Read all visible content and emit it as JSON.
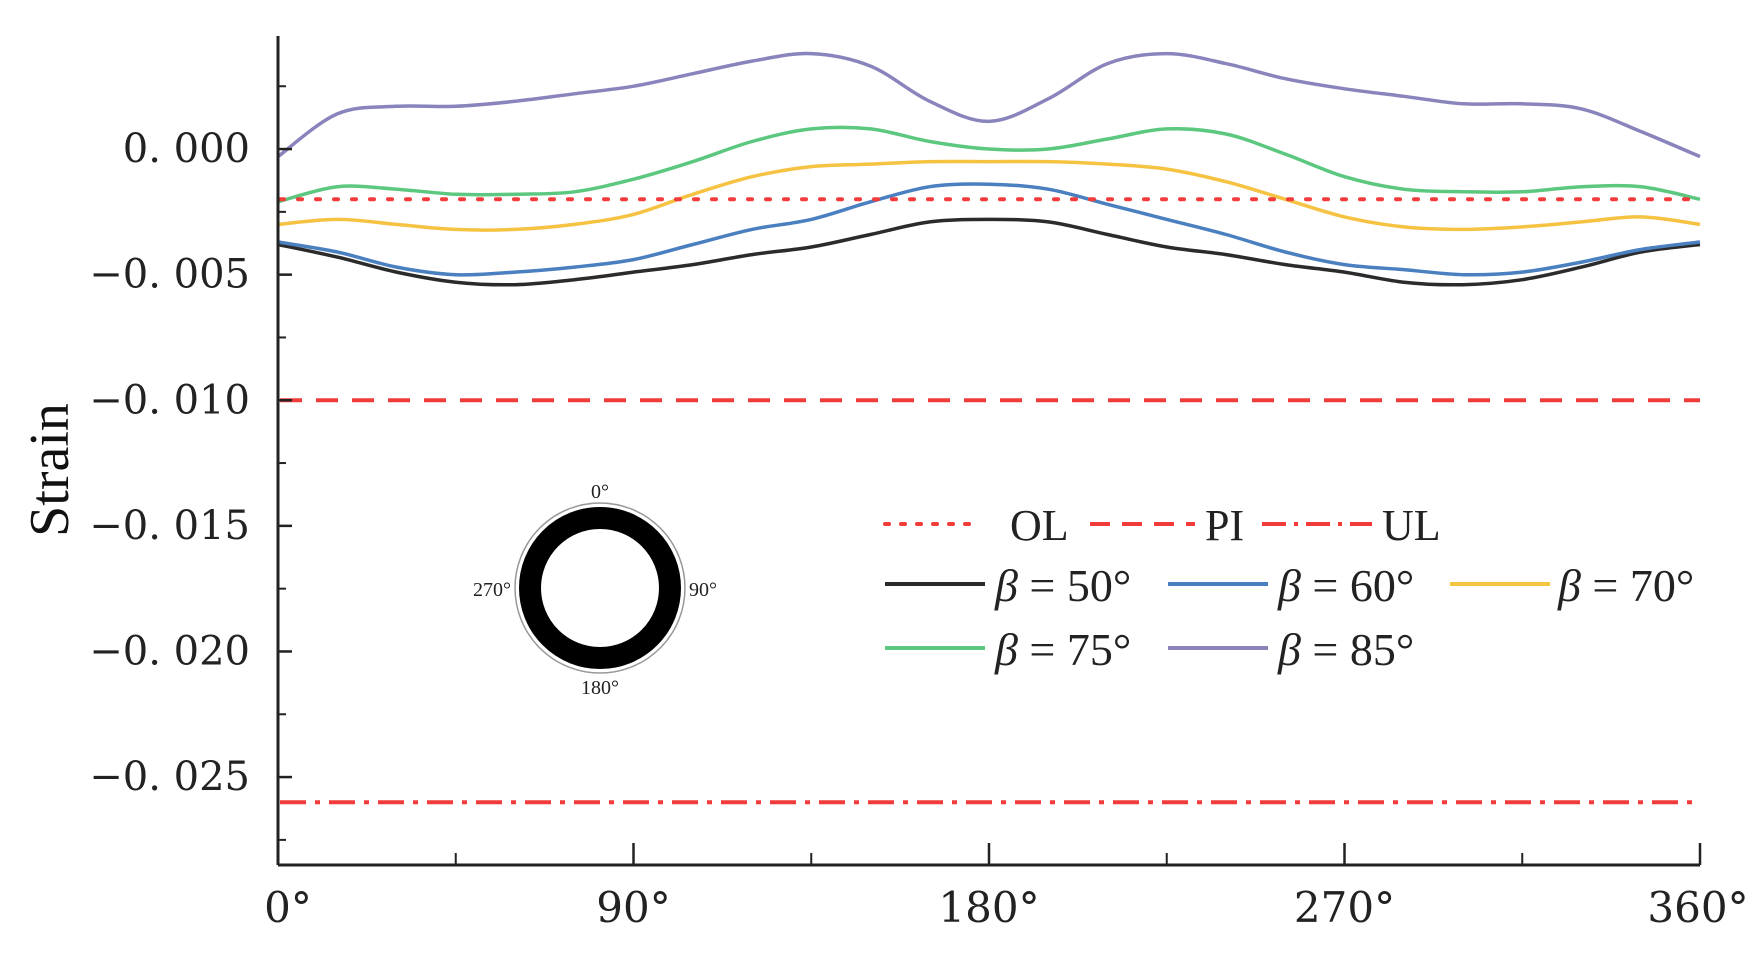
{
  "chart_data": {
    "type": "line",
    "ylabel": "Strain",
    "xlabel": "",
    "xlim": [
      0,
      360
    ],
    "ylim": [
      -0.0285,
      0.0045
    ],
    "x_ticks": [
      0,
      90,
      180,
      270,
      360
    ],
    "x_tick_labels": [
      "0°",
      "90°",
      "180°",
      "270°",
      "360°"
    ],
    "y_ticks": [
      0.0,
      -0.005,
      -0.01,
      -0.015,
      -0.02,
      -0.025
    ],
    "y_tick_labels": [
      "0. 000",
      "−0. 005",
      "−0. 010",
      "−0. 015",
      "−0. 020",
      "−0. 025"
    ],
    "reference_lines": [
      {
        "name": "OL",
        "value": -0.002,
        "style": "dotted",
        "color": "#f23b3b"
      },
      {
        "name": "PI",
        "value": -0.01,
        "style": "dashed",
        "color": "#f23b3b"
      },
      {
        "name": "UL",
        "value": -0.026,
        "style": "dashdot",
        "color": "#f23b3b"
      }
    ],
    "series": [
      {
        "name": "β = 50°",
        "label_prefix": "β",
        "label_suffix": " = 50°",
        "color": "#2b2b2b",
        "x": [
          0,
          15,
          30,
          45,
          60,
          75,
          90,
          105,
          120,
          135,
          150,
          165,
          180,
          195,
          210,
          225,
          240,
          255,
          270,
          285,
          300,
          315,
          330,
          345,
          360
        ],
        "y": [
          -0.0038,
          -0.0043,
          -0.0049,
          -0.0053,
          -0.0054,
          -0.0052,
          -0.0049,
          -0.0046,
          -0.0042,
          -0.0039,
          -0.0034,
          -0.0029,
          -0.0028,
          -0.0029,
          -0.0034,
          -0.0039,
          -0.0042,
          -0.0046,
          -0.0049,
          -0.0053,
          -0.0054,
          -0.0052,
          -0.0047,
          -0.0041,
          -0.0038
        ]
      },
      {
        "name": "β = 60°",
        "label_prefix": "β",
        "label_suffix": " = 60°",
        "color": "#4a7fc0",
        "x": [
          0,
          15,
          30,
          45,
          60,
          75,
          90,
          105,
          120,
          135,
          150,
          165,
          180,
          195,
          210,
          225,
          240,
          255,
          270,
          285,
          300,
          315,
          330,
          345,
          360
        ],
        "y": [
          -0.0037,
          -0.0041,
          -0.0047,
          -0.005,
          -0.0049,
          -0.0047,
          -0.0044,
          -0.0038,
          -0.0032,
          -0.0028,
          -0.0021,
          -0.0015,
          -0.0014,
          -0.0016,
          -0.0022,
          -0.0028,
          -0.0034,
          -0.0041,
          -0.0046,
          -0.0048,
          -0.005,
          -0.0049,
          -0.0045,
          -0.004,
          -0.0037
        ]
      },
      {
        "name": "β = 70°",
        "label_prefix": "β",
        "label_suffix": " = 70°",
        "color": "#f5c242",
        "x": [
          0,
          15,
          30,
          45,
          60,
          75,
          90,
          105,
          120,
          135,
          150,
          165,
          180,
          195,
          210,
          225,
          240,
          255,
          270,
          285,
          300,
          315,
          330,
          345,
          360
        ],
        "y": [
          -0.003,
          -0.0028,
          -0.003,
          -0.0032,
          -0.0032,
          -0.003,
          -0.0026,
          -0.0018,
          -0.0011,
          -0.0007,
          -0.0006,
          -0.0005,
          -0.0005,
          -0.0005,
          -0.0006,
          -0.0008,
          -0.0013,
          -0.002,
          -0.0027,
          -0.0031,
          -0.0032,
          -0.0031,
          -0.0029,
          -0.0027,
          -0.003
        ]
      },
      {
        "name": "β = 75°",
        "label_prefix": "β",
        "label_suffix": " = 75°",
        "color": "#5cc77e",
        "x": [
          0,
          15,
          30,
          45,
          60,
          75,
          90,
          105,
          120,
          135,
          150,
          165,
          180,
          195,
          210,
          225,
          240,
          255,
          270,
          285,
          300,
          315,
          330,
          345,
          360
        ],
        "y": [
          -0.0021,
          -0.0015,
          -0.0016,
          -0.0018,
          -0.0018,
          -0.0017,
          -0.0012,
          -0.0005,
          0.0003,
          0.0008,
          0.0008,
          0.0003,
          0.0,
          0.0,
          0.0004,
          0.0008,
          0.0006,
          -0.0002,
          -0.0011,
          -0.0016,
          -0.0017,
          -0.0017,
          -0.0015,
          -0.0015,
          -0.002
        ]
      },
      {
        "name": "β = 85°",
        "label_prefix": "β",
        "label_suffix": " = 85°",
        "color": "#8a84bd",
        "x": [
          0,
          15,
          30,
          45,
          60,
          75,
          90,
          105,
          120,
          135,
          150,
          165,
          180,
          195,
          210,
          225,
          240,
          255,
          270,
          285,
          300,
          315,
          330,
          345,
          360
        ],
        "y": [
          -0.0003,
          0.0014,
          0.0017,
          0.0017,
          0.0019,
          0.0022,
          0.0025,
          0.003,
          0.0035,
          0.0038,
          0.0033,
          0.0019,
          0.0011,
          0.002,
          0.0034,
          0.0038,
          0.0034,
          0.0028,
          0.0024,
          0.0021,
          0.0018,
          0.0018,
          0.0016,
          0.0007,
          -0.0003
        ]
      }
    ],
    "legend": {
      "position": "center-right",
      "row1": [
        "OL",
        "PI",
        "UL"
      ],
      "row2": [
        "β = 50°",
        "β = 60°",
        "β = 70°"
      ],
      "row3": [
        "β = 75°",
        "β = 85°"
      ]
    },
    "inset": {
      "description_labels": [
        "0°",
        "90°",
        "180°",
        "270°"
      ]
    }
  }
}
